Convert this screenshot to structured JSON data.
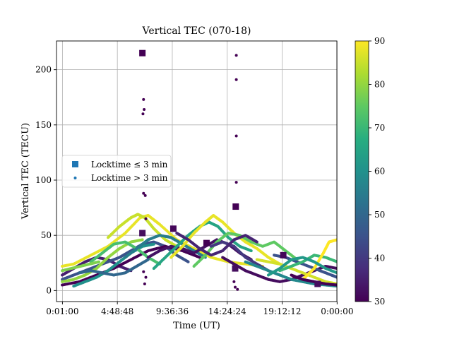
{
  "chart_data": {
    "type": "scatter",
    "title": "Vertical TEC (070-18)",
    "xlabel": "Time (UT)",
    "ylabel": "Vertical TEC (TECU)",
    "x_unit": "hours (UT)",
    "xlim": [
      -0.5,
      23.98
    ],
    "ylim": [
      -10,
      226
    ],
    "xticks": [
      0.0167,
      4.8133,
      9.61,
      14.4067,
      19.2033,
      24.0
    ],
    "xtick_labels": [
      "0:01:00",
      "4:48:48",
      "9:36:36",
      "14:24:24",
      "19:12:12",
      "0:00:00"
    ],
    "yticks": [
      0,
      50,
      100,
      150,
      200
    ],
    "ytick_labels": [
      "0",
      "50",
      "100",
      "150",
      "200"
    ],
    "grid": true,
    "legend_position": "center-left",
    "colormap": "viridis",
    "colorbar": {
      "range": [
        30,
        90
      ],
      "ticks": [
        30,
        40,
        50,
        60,
        70,
        80,
        90
      ],
      "tick_labels": [
        "30",
        "40",
        "50",
        "60",
        "70",
        "80",
        "90"
      ],
      "colors": [
        "#440154",
        "#472d7b",
        "#3b528b",
        "#2c728e",
        "#21918c",
        "#28ae80",
        "#5ec962",
        "#addc30",
        "#fde725"
      ]
    },
    "series": [
      {
        "name": "Locktime ≤ 3 min",
        "marker": "square",
        "legend_color": "#1f77b4",
        "points": [
          {
            "x": 7.0,
            "y": 215,
            "c": 30
          },
          {
            "x": 15.15,
            "y": 76,
            "c": 30
          },
          {
            "x": 7.0,
            "y": 52,
            "c": 32
          },
          {
            "x": 9.7,
            "y": 56,
            "c": 31
          },
          {
            "x": 12.6,
            "y": 43,
            "c": 30
          },
          {
            "x": 15.1,
            "y": 20,
            "c": 32
          },
          {
            "x": 19.3,
            "y": 32,
            "c": 31
          },
          {
            "x": 22.3,
            "y": 6,
            "c": 32
          }
        ]
      },
      {
        "name": "Locktime > 3 min",
        "marker": "circle",
        "legend_color": "#1f77b4",
        "points": [
          {
            "x": 15.2,
            "y": 213,
            "c": 30
          },
          {
            "x": 15.2,
            "y": 191,
            "c": 30
          },
          {
            "x": 15.2,
            "y": 140,
            "c": 30
          },
          {
            "x": 15.2,
            "y": 98,
            "c": 30
          },
          {
            "x": 7.1,
            "y": 173,
            "c": 30
          },
          {
            "x": 7.15,
            "y": 164,
            "c": 30
          },
          {
            "x": 7.05,
            "y": 160,
            "c": 30
          },
          {
            "x": 7.1,
            "y": 88,
            "c": 30
          },
          {
            "x": 7.25,
            "y": 86,
            "c": 30
          },
          {
            "x": 7.3,
            "y": 65,
            "c": 30
          },
          {
            "x": 7.1,
            "y": 17,
            "c": 30
          },
          {
            "x": 7.3,
            "y": 12,
            "c": 30
          },
          {
            "x": 7.2,
            "y": 6,
            "c": 30
          },
          {
            "x": 15.0,
            "y": 8,
            "c": 30
          },
          {
            "x": 15.1,
            "y": 3,
            "c": 30
          },
          {
            "x": 15.3,
            "y": 1,
            "c": 30
          }
        ]
      }
    ],
    "tracks": [
      {
        "c": 88,
        "points": [
          [
            0,
            22
          ],
          [
            1.0,
            24
          ],
          [
            2.5,
            32
          ],
          [
            4.0,
            40
          ],
          [
            5.5,
            52
          ],
          [
            6.8,
            66
          ],
          [
            7.5,
            68
          ],
          [
            8.5,
            60
          ],
          [
            10.0,
            46
          ],
          [
            11.5,
            38
          ],
          [
            13.0,
            30
          ],
          [
            14.5,
            26
          ],
          [
            16.0,
            24
          ],
          [
            17.5,
            22
          ]
        ]
      },
      {
        "c": 35,
        "points": [
          [
            0,
            14
          ],
          [
            1.0,
            20
          ],
          [
            2.0,
            26
          ],
          [
            3.0,
            30
          ],
          [
            4.0,
            28
          ],
          [
            5.0,
            22
          ],
          [
            6.0,
            18
          ]
        ]
      },
      {
        "c": 45,
        "points": [
          [
            0,
            10
          ],
          [
            1.0,
            14
          ],
          [
            2.0,
            18
          ],
          [
            3.0,
            22
          ],
          [
            4.0,
            26
          ],
          [
            5.0,
            30
          ],
          [
            6.0,
            36
          ],
          [
            7.0,
            42
          ],
          [
            8.0,
            44
          ],
          [
            9.0,
            40
          ],
          [
            10.0,
            32
          ],
          [
            11.0,
            26
          ]
        ]
      },
      {
        "c": 80,
        "points": [
          [
            0,
            8
          ],
          [
            1.0,
            10
          ],
          [
            2.0,
            14
          ],
          [
            3.0,
            20
          ],
          [
            4.0,
            30
          ],
          [
            5.0,
            38
          ],
          [
            6.0,
            44
          ],
          [
            7.0,
            46
          ]
        ]
      },
      {
        "c": 30,
        "points": [
          [
            0,
            5
          ],
          [
            1.5,
            8
          ],
          [
            3.0,
            14
          ],
          [
            4.5,
            20
          ],
          [
            6.0,
            28
          ],
          [
            7.5,
            36
          ],
          [
            9.0,
            40
          ],
          [
            10.5,
            36
          ],
          [
            12.0,
            30
          ]
        ]
      },
      {
        "c": 60,
        "points": [
          [
            1.0,
            4
          ],
          [
            2.0,
            8
          ],
          [
            3.0,
            12
          ],
          [
            4.0,
            18
          ],
          [
            5.0,
            26
          ],
          [
            6.0,
            34
          ],
          [
            7.0,
            40
          ],
          [
            8.0,
            42
          ]
        ]
      },
      {
        "c": 72,
        "points": [
          [
            2.5,
            26
          ],
          [
            3.5,
            34
          ],
          [
            4.5,
            42
          ],
          [
            5.5,
            44
          ],
          [
            6.5,
            38
          ],
          [
            7.5,
            30
          ],
          [
            8.5,
            24
          ]
        ]
      },
      {
        "c": 85,
        "points": [
          [
            4.0,
            48
          ],
          [
            5.0,
            58
          ],
          [
            6.0,
            66
          ],
          [
            6.6,
            69
          ],
          [
            7.2,
            66
          ],
          [
            8.0,
            56
          ],
          [
            9.0,
            46
          ],
          [
            10.0,
            40
          ]
        ]
      },
      {
        "c": 55,
        "points": [
          [
            5.5,
            30
          ],
          [
            6.5,
            38
          ],
          [
            7.5,
            46
          ],
          [
            8.5,
            50
          ],
          [
            9.5,
            48
          ],
          [
            10.5,
            42
          ],
          [
            11.5,
            36
          ],
          [
            12.5,
            30
          ]
        ]
      },
      {
        "c": 33,
        "points": [
          [
            7.5,
            30
          ],
          [
            8.5,
            36
          ],
          [
            9.5,
            40
          ],
          [
            10.5,
            38
          ],
          [
            11.5,
            34
          ],
          [
            12.5,
            40
          ],
          [
            13.5,
            46
          ],
          [
            14.5,
            42
          ],
          [
            15.5,
            34
          ],
          [
            16.5,
            28
          ]
        ]
      },
      {
        "c": 65,
        "points": [
          [
            8.0,
            20
          ],
          [
            9.0,
            30
          ],
          [
            10.0,
            40
          ],
          [
            11.0,
            50
          ],
          [
            12.0,
            58
          ],
          [
            12.8,
            62
          ],
          [
            13.6,
            58
          ],
          [
            14.5,
            48
          ],
          [
            15.5,
            40
          ],
          [
            16.5,
            36
          ]
        ]
      },
      {
        "c": 88,
        "points": [
          [
            9.5,
            30
          ],
          [
            10.5,
            40
          ],
          [
            11.5,
            52
          ],
          [
            12.5,
            62
          ],
          [
            13.2,
            68
          ],
          [
            14.0,
            62
          ],
          [
            15.0,
            52
          ],
          [
            16.0,
            44
          ],
          [
            17.0,
            38
          ],
          [
            18.0,
            30
          ],
          [
            19.0,
            24
          ]
        ]
      },
      {
        "c": 75,
        "points": [
          [
            11.5,
            22
          ],
          [
            12.5,
            32
          ],
          [
            13.5,
            44
          ],
          [
            14.5,
            52
          ],
          [
            15.5,
            50
          ],
          [
            16.5,
            44
          ],
          [
            17.5,
            40
          ],
          [
            18.5,
            44
          ],
          [
            19.5,
            36
          ],
          [
            20.5,
            28
          ]
        ]
      },
      {
        "c": 40,
        "points": [
          [
            13.0,
            40
          ],
          [
            14.0,
            44
          ],
          [
            15.0,
            40
          ],
          [
            16.0,
            30
          ],
          [
            17.0,
            24
          ],
          [
            18.0,
            18
          ],
          [
            19.0,
            14
          ]
        ]
      },
      {
        "c": 32,
        "points": [
          [
            14.0,
            30
          ],
          [
            15.0,
            24
          ],
          [
            16.0,
            18
          ],
          [
            17.0,
            14
          ],
          [
            18.0,
            10
          ],
          [
            19.0,
            8
          ],
          [
            20.0,
            10
          ],
          [
            21.0,
            14
          ],
          [
            22.0,
            18
          ],
          [
            23.0,
            22
          ],
          [
            24.0,
            20
          ]
        ]
      },
      {
        "c": 58,
        "points": [
          [
            16.0,
            26
          ],
          [
            17.0,
            22
          ],
          [
            18.0,
            18
          ],
          [
            19.0,
            14
          ],
          [
            20.0,
            10
          ],
          [
            21.0,
            8
          ],
          [
            22.0,
            6
          ],
          [
            23.0,
            5
          ],
          [
            24.0,
            4
          ]
        ]
      },
      {
        "c": 86,
        "points": [
          [
            17.0,
            28
          ],
          [
            18.0,
            26
          ],
          [
            19.0,
            24
          ],
          [
            20.0,
            20
          ],
          [
            21.0,
            16
          ],
          [
            22.0,
            12
          ],
          [
            23.0,
            8
          ],
          [
            24.0,
            6
          ]
        ]
      },
      {
        "c": 45,
        "points": [
          [
            18.5,
            32
          ],
          [
            19.5,
            30
          ],
          [
            20.5,
            26
          ],
          [
            21.5,
            22
          ],
          [
            22.5,
            18
          ],
          [
            23.5,
            14
          ],
          [
            24.0,
            12
          ]
        ]
      },
      {
        "c": 70,
        "points": [
          [
            19.0,
            18
          ],
          [
            20.0,
            22
          ],
          [
            21.0,
            26
          ],
          [
            22.0,
            32
          ],
          [
            23.0,
            30
          ],
          [
            24.0,
            26
          ]
        ]
      },
      {
        "c": 90,
        "points": [
          [
            21.0,
            10
          ],
          [
            22.0,
            20
          ],
          [
            22.8,
            34
          ],
          [
            23.3,
            44
          ],
          [
            24.0,
            46
          ]
        ]
      },
      {
        "c": 30,
        "points": [
          [
            20.0,
            14
          ],
          [
            21.0,
            10
          ],
          [
            22.0,
            8
          ],
          [
            23.0,
            6
          ],
          [
            24.0,
            5
          ]
        ]
      },
      {
        "c": 62,
        "points": [
          [
            18.0,
            14
          ],
          [
            19.0,
            20
          ],
          [
            20.0,
            28
          ],
          [
            21.0,
            30
          ],
          [
            22.0,
            26
          ],
          [
            23.0,
            20
          ],
          [
            24.0,
            16
          ]
        ]
      },
      {
        "c": 78,
        "points": [
          [
            0,
            18
          ],
          [
            0.8,
            20
          ],
          [
            1.6,
            22
          ],
          [
            2.4,
            24
          ],
          [
            3.2,
            26
          ]
        ]
      },
      {
        "c": 50,
        "points": [
          [
            1.5,
            16
          ],
          [
            2.5,
            18
          ],
          [
            3.5,
            16
          ],
          [
            4.5,
            14
          ],
          [
            5.5,
            16
          ],
          [
            6.5,
            22
          ],
          [
            7.5,
            28
          ]
        ]
      },
      {
        "c": 36,
        "points": [
          [
            10.0,
            52
          ],
          [
            11.0,
            46
          ],
          [
            12.0,
            38
          ],
          [
            13.0,
            32
          ],
          [
            14.0,
            36
          ],
          [
            15.0,
            46
          ],
          [
            16.0,
            50
          ],
          [
            17.0,
            44
          ]
        ]
      }
    ]
  }
}
